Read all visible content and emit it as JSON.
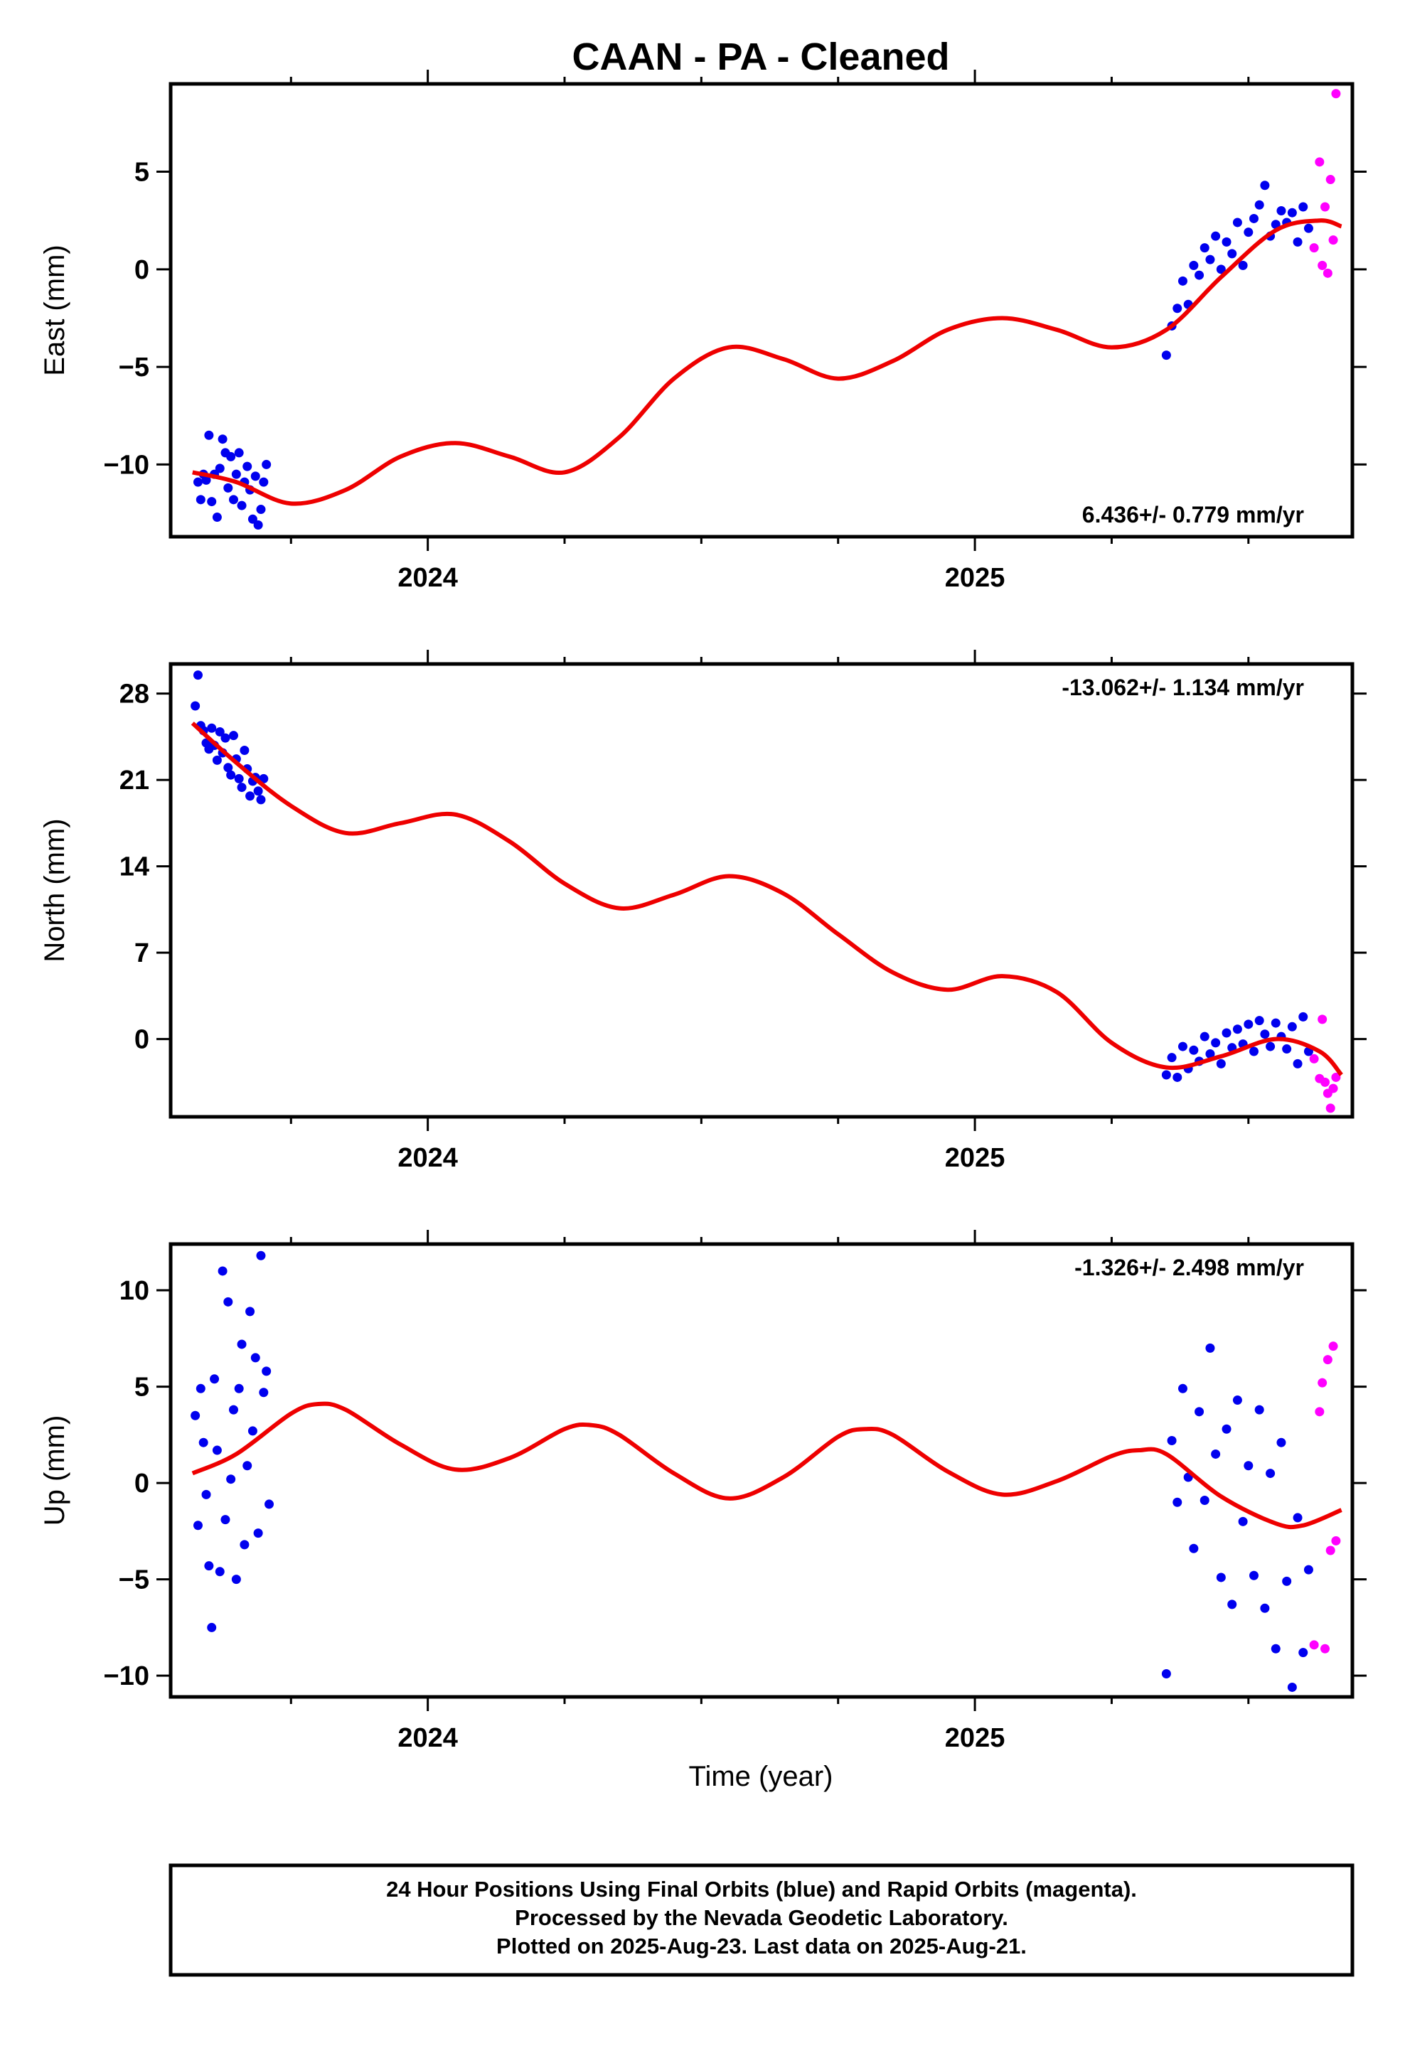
{
  "title": "CAAN  - PA - Cleaned",
  "xlabel": "Time (year)",
  "footer": {
    "line1": "24 Hour Positions Using Final Orbits (blue) and Rapid Orbits (magenta).",
    "line2": "Processed by the Nevada Geodetic Laboratory.",
    "line3": "Plotted on 2025-Aug-23. Last data on 2025-Aug-21."
  },
  "colors": {
    "final": "#0000ee",
    "rapid": "#ff00ff",
    "model": "#ee0000",
    "frame": "#000000"
  },
  "chart_data": [
    {
      "type": "scatter",
      "ylabel": "East (mm)",
      "rate": "6.436+/- 0.779 mm/yr",
      "rate_position": "bottom-right",
      "xlim": [
        2023.53,
        2025.69
      ],
      "ylim": [
        -13.7,
        9.5
      ],
      "yticks": [
        5,
        0,
        -5,
        -10
      ],
      "ytick_labels": [
        "5",
        "0",
        "−5",
        "−10"
      ],
      "xticks": [
        2024,
        2025
      ],
      "xtick_labels": [
        "2024",
        "2025"
      ],
      "model": {
        "x": [
          2023.57,
          2023.65,
          2023.75,
          2023.85,
          2023.95,
          2024.05,
          2024.15,
          2024.25,
          2024.35,
          2024.45,
          2024.55,
          2024.65,
          2024.75,
          2024.85,
          2024.95,
          2025.05,
          2025.15,
          2025.25,
          2025.35,
          2025.45,
          2025.55,
          2025.63,
          2025.67
        ],
        "y": [
          -10.4,
          -10.9,
          -12.0,
          -11.3,
          -9.6,
          -8.9,
          -9.6,
          -10.4,
          -8.6,
          -5.6,
          -4.0,
          -4.6,
          -5.6,
          -4.7,
          -3.1,
          -2.5,
          -3.1,
          -4.0,
          -3.1,
          -0.4,
          2.0,
          2.5,
          2.2
        ]
      },
      "final": {
        "x": [
          2023.58,
          2023.585,
          2023.59,
          2023.595,
          2023.6,
          2023.605,
          2023.61,
          2023.615,
          2023.62,
          2023.625,
          2023.63,
          2023.635,
          2023.64,
          2023.645,
          2023.65,
          2023.655,
          2023.66,
          2023.665,
          2023.67,
          2023.675,
          2023.68,
          2023.685,
          2023.69,
          2023.695,
          2023.7,
          2023.705,
          2025.35,
          2025.36,
          2025.37,
          2025.38,
          2025.39,
          2025.4,
          2025.41,
          2025.42,
          2025.43,
          2025.44,
          2025.45,
          2025.46,
          2025.47,
          2025.48,
          2025.49,
          2025.5,
          2025.51,
          2025.52,
          2025.53,
          2025.54,
          2025.55,
          2025.56,
          2025.57,
          2025.58,
          2025.59,
          2025.6,
          2025.61
        ],
        "y": [
          -10.9,
          -11.8,
          -10.5,
          -10.8,
          -8.5,
          -11.9,
          -10.5,
          -12.7,
          -10.2,
          -8.7,
          -9.4,
          -11.2,
          -9.6,
          -11.8,
          -10.5,
          -9.4,
          -12.1,
          -10.9,
          -10.1,
          -11.3,
          -12.8,
          -10.6,
          -13.1,
          -12.3,
          -10.9,
          -10.0,
          -4.4,
          -2.9,
          -2.0,
          -0.6,
          -1.8,
          0.2,
          -0.3,
          1.1,
          0.5,
          1.7,
          0.0,
          1.4,
          0.8,
          2.4,
          0.2,
          1.9,
          2.6,
          3.3,
          4.3,
          1.7,
          2.3,
          3.0,
          2.4,
          2.9,
          1.4,
          3.2,
          2.1
        ]
      },
      "rapid": {
        "x": [
          2025.62,
          2025.63,
          2025.635,
          2025.64,
          2025.645,
          2025.65,
          2025.655,
          2025.66
        ],
        "y": [
          1.1,
          5.5,
          0.2,
          3.2,
          -0.2,
          4.6,
          1.5,
          9.0
        ]
      }
    },
    {
      "type": "scatter",
      "ylabel": "North (mm)",
      "rate": "-13.062+/- 1.134 mm/yr",
      "rate_position": "top-right",
      "xlim": [
        2023.53,
        2025.69
      ],
      "ylim": [
        -6.3,
        30.4
      ],
      "yticks": [
        28,
        21,
        14,
        7,
        0
      ],
      "ytick_labels": [
        "28",
        "21",
        "14",
        "7",
        "0"
      ],
      "xticks": [
        2024,
        2025
      ],
      "xtick_labels": [
        "2024",
        "2025"
      ],
      "model": {
        "x": [
          2023.57,
          2023.65,
          2023.75,
          2023.85,
          2023.95,
          2024.05,
          2024.15,
          2024.25,
          2024.35,
          2024.45,
          2024.55,
          2024.65,
          2024.75,
          2024.85,
          2024.95,
          2025.05,
          2025.15,
          2025.25,
          2025.35,
          2025.45,
          2025.55,
          2025.63,
          2025.67
        ],
        "y": [
          25.6,
          22.4,
          18.9,
          16.7,
          17.5,
          18.2,
          16.0,
          12.6,
          10.6,
          11.7,
          13.2,
          11.8,
          8.5,
          5.4,
          4.0,
          5.1,
          3.8,
          -0.3,
          -2.3,
          -1.4,
          0.0,
          -1.0,
          -2.9
        ]
      },
      "final": {
        "x": [
          2023.575,
          2023.58,
          2023.585,
          2023.59,
          2023.595,
          2023.6,
          2023.605,
          2023.61,
          2023.615,
          2023.62,
          2023.625,
          2023.63,
          2023.635,
          2023.64,
          2023.645,
          2023.65,
          2023.655,
          2023.66,
          2023.665,
          2023.67,
          2023.675,
          2023.68,
          2023.685,
          2023.69,
          2023.695,
          2023.7,
          2025.35,
          2025.36,
          2025.37,
          2025.38,
          2025.39,
          2025.4,
          2025.41,
          2025.42,
          2025.43,
          2025.44,
          2025.45,
          2025.46,
          2025.47,
          2025.48,
          2025.49,
          2025.5,
          2025.51,
          2025.52,
          2025.53,
          2025.54,
          2025.55,
          2025.56,
          2025.57,
          2025.58,
          2025.59,
          2025.6,
          2025.61
        ],
        "y": [
          27.0,
          29.5,
          25.4,
          25.0,
          24.0,
          23.5,
          25.2,
          23.8,
          22.6,
          24.9,
          23.2,
          24.4,
          22.0,
          21.4,
          24.6,
          22.7,
          21.1,
          20.4,
          23.4,
          21.9,
          19.7,
          20.9,
          21.2,
          20.1,
          19.4,
          21.1,
          -2.9,
          -1.5,
          -3.1,
          -0.6,
          -2.4,
          -0.9,
          -1.8,
          0.2,
          -1.2,
          -0.3,
          -2.0,
          0.5,
          -0.7,
          0.8,
          -0.4,
          1.2,
          -1.0,
          1.5,
          0.4,
          -0.6,
          1.3,
          0.2,
          -0.8,
          1.0,
          -2.0,
          1.8,
          -1.0
        ]
      },
      "rapid": {
        "x": [
          2025.62,
          2025.63,
          2025.635,
          2025.64,
          2025.645,
          2025.65,
          2025.655,
          2025.66
        ],
        "y": [
          -1.6,
          -3.2,
          1.6,
          -3.5,
          -4.4,
          -5.6,
          -4.0,
          -3.1
        ]
      }
    },
    {
      "type": "scatter",
      "ylabel": "Up (mm)",
      "rate": "-1.326+/- 2.498 mm/yr",
      "rate_position": "top-right",
      "xlim": [
        2023.53,
        2025.69
      ],
      "ylim": [
        -11.1,
        12.4
      ],
      "yticks": [
        10,
        5,
        0,
        -5,
        -10
      ],
      "ytick_labels": [
        "10",
        "5",
        "0",
        "−5",
        "−10"
      ],
      "xticks": [
        2024,
        2025
      ],
      "xtick_labels": [
        "2024",
        "2025"
      ],
      "model": {
        "x": [
          2023.57,
          2023.65,
          2023.75,
          2023.8,
          2023.85,
          2023.95,
          2024.05,
          2024.15,
          2024.25,
          2024.3,
          2024.35,
          2024.45,
          2024.55,
          2024.65,
          2024.75,
          2024.8,
          2024.85,
          2024.95,
          2025.05,
          2025.15,
          2025.25,
          2025.3,
          2025.35,
          2025.45,
          2025.55,
          2025.6,
          2025.67
        ],
        "y": [
          0.5,
          1.5,
          3.6,
          4.1,
          3.8,
          2.0,
          0.7,
          1.3,
          2.8,
          3.0,
          2.5,
          0.5,
          -0.8,
          0.3,
          2.4,
          2.8,
          2.5,
          0.6,
          -0.6,
          0.1,
          1.4,
          1.7,
          1.5,
          -0.7,
          -2.1,
          -2.2,
          -1.4
        ]
      },
      "final": {
        "x": [
          2023.575,
          2023.58,
          2023.585,
          2023.59,
          2023.595,
          2023.6,
          2023.605,
          2023.61,
          2023.615,
          2023.62,
          2023.625,
          2023.63,
          2023.635,
          2023.64,
          2023.645,
          2023.65,
          2023.655,
          2023.66,
          2023.665,
          2023.67,
          2023.675,
          2023.68,
          2023.685,
          2023.69,
          2023.695,
          2023.7,
          2023.705,
          2023.71,
          2025.35,
          2025.36,
          2025.37,
          2025.38,
          2025.39,
          2025.4,
          2025.41,
          2025.42,
          2025.43,
          2025.44,
          2025.45,
          2025.46,
          2025.47,
          2025.48,
          2025.49,
          2025.5,
          2025.51,
          2025.52,
          2025.53,
          2025.54,
          2025.55,
          2025.56,
          2025.57,
          2025.58,
          2025.59,
          2025.6,
          2025.61
        ],
        "y": [
          3.5,
          -2.2,
          4.9,
          2.1,
          -0.6,
          -4.3,
          -7.5,
          5.4,
          1.7,
          -4.6,
          11.0,
          -1.9,
          9.4,
          0.2,
          3.8,
          -5.0,
          4.9,
          7.2,
          -3.2,
          0.9,
          8.9,
          2.7,
          6.5,
          -2.6,
          11.8,
          4.7,
          5.8,
          -1.1,
          -9.9,
          2.2,
          -1.0,
          4.9,
          0.3,
          -3.4,
          3.7,
          -0.9,
          7.0,
          1.5,
          -4.9,
          2.8,
          -6.3,
          4.3,
          -2.0,
          0.9,
          -4.8,
          3.8,
          -6.5,
          0.5,
          -8.6,
          2.1,
          -5.1,
          -10.6,
          -1.8,
          -8.8,
          -4.5
        ]
      },
      "rapid": {
        "x": [
          2025.62,
          2025.63,
          2025.635,
          2025.64,
          2025.645,
          2025.65,
          2025.655,
          2025.66
        ],
        "y": [
          -8.4,
          3.7,
          5.2,
          -8.6,
          6.4,
          -3.5,
          7.1,
          -3.0
        ]
      }
    }
  ]
}
